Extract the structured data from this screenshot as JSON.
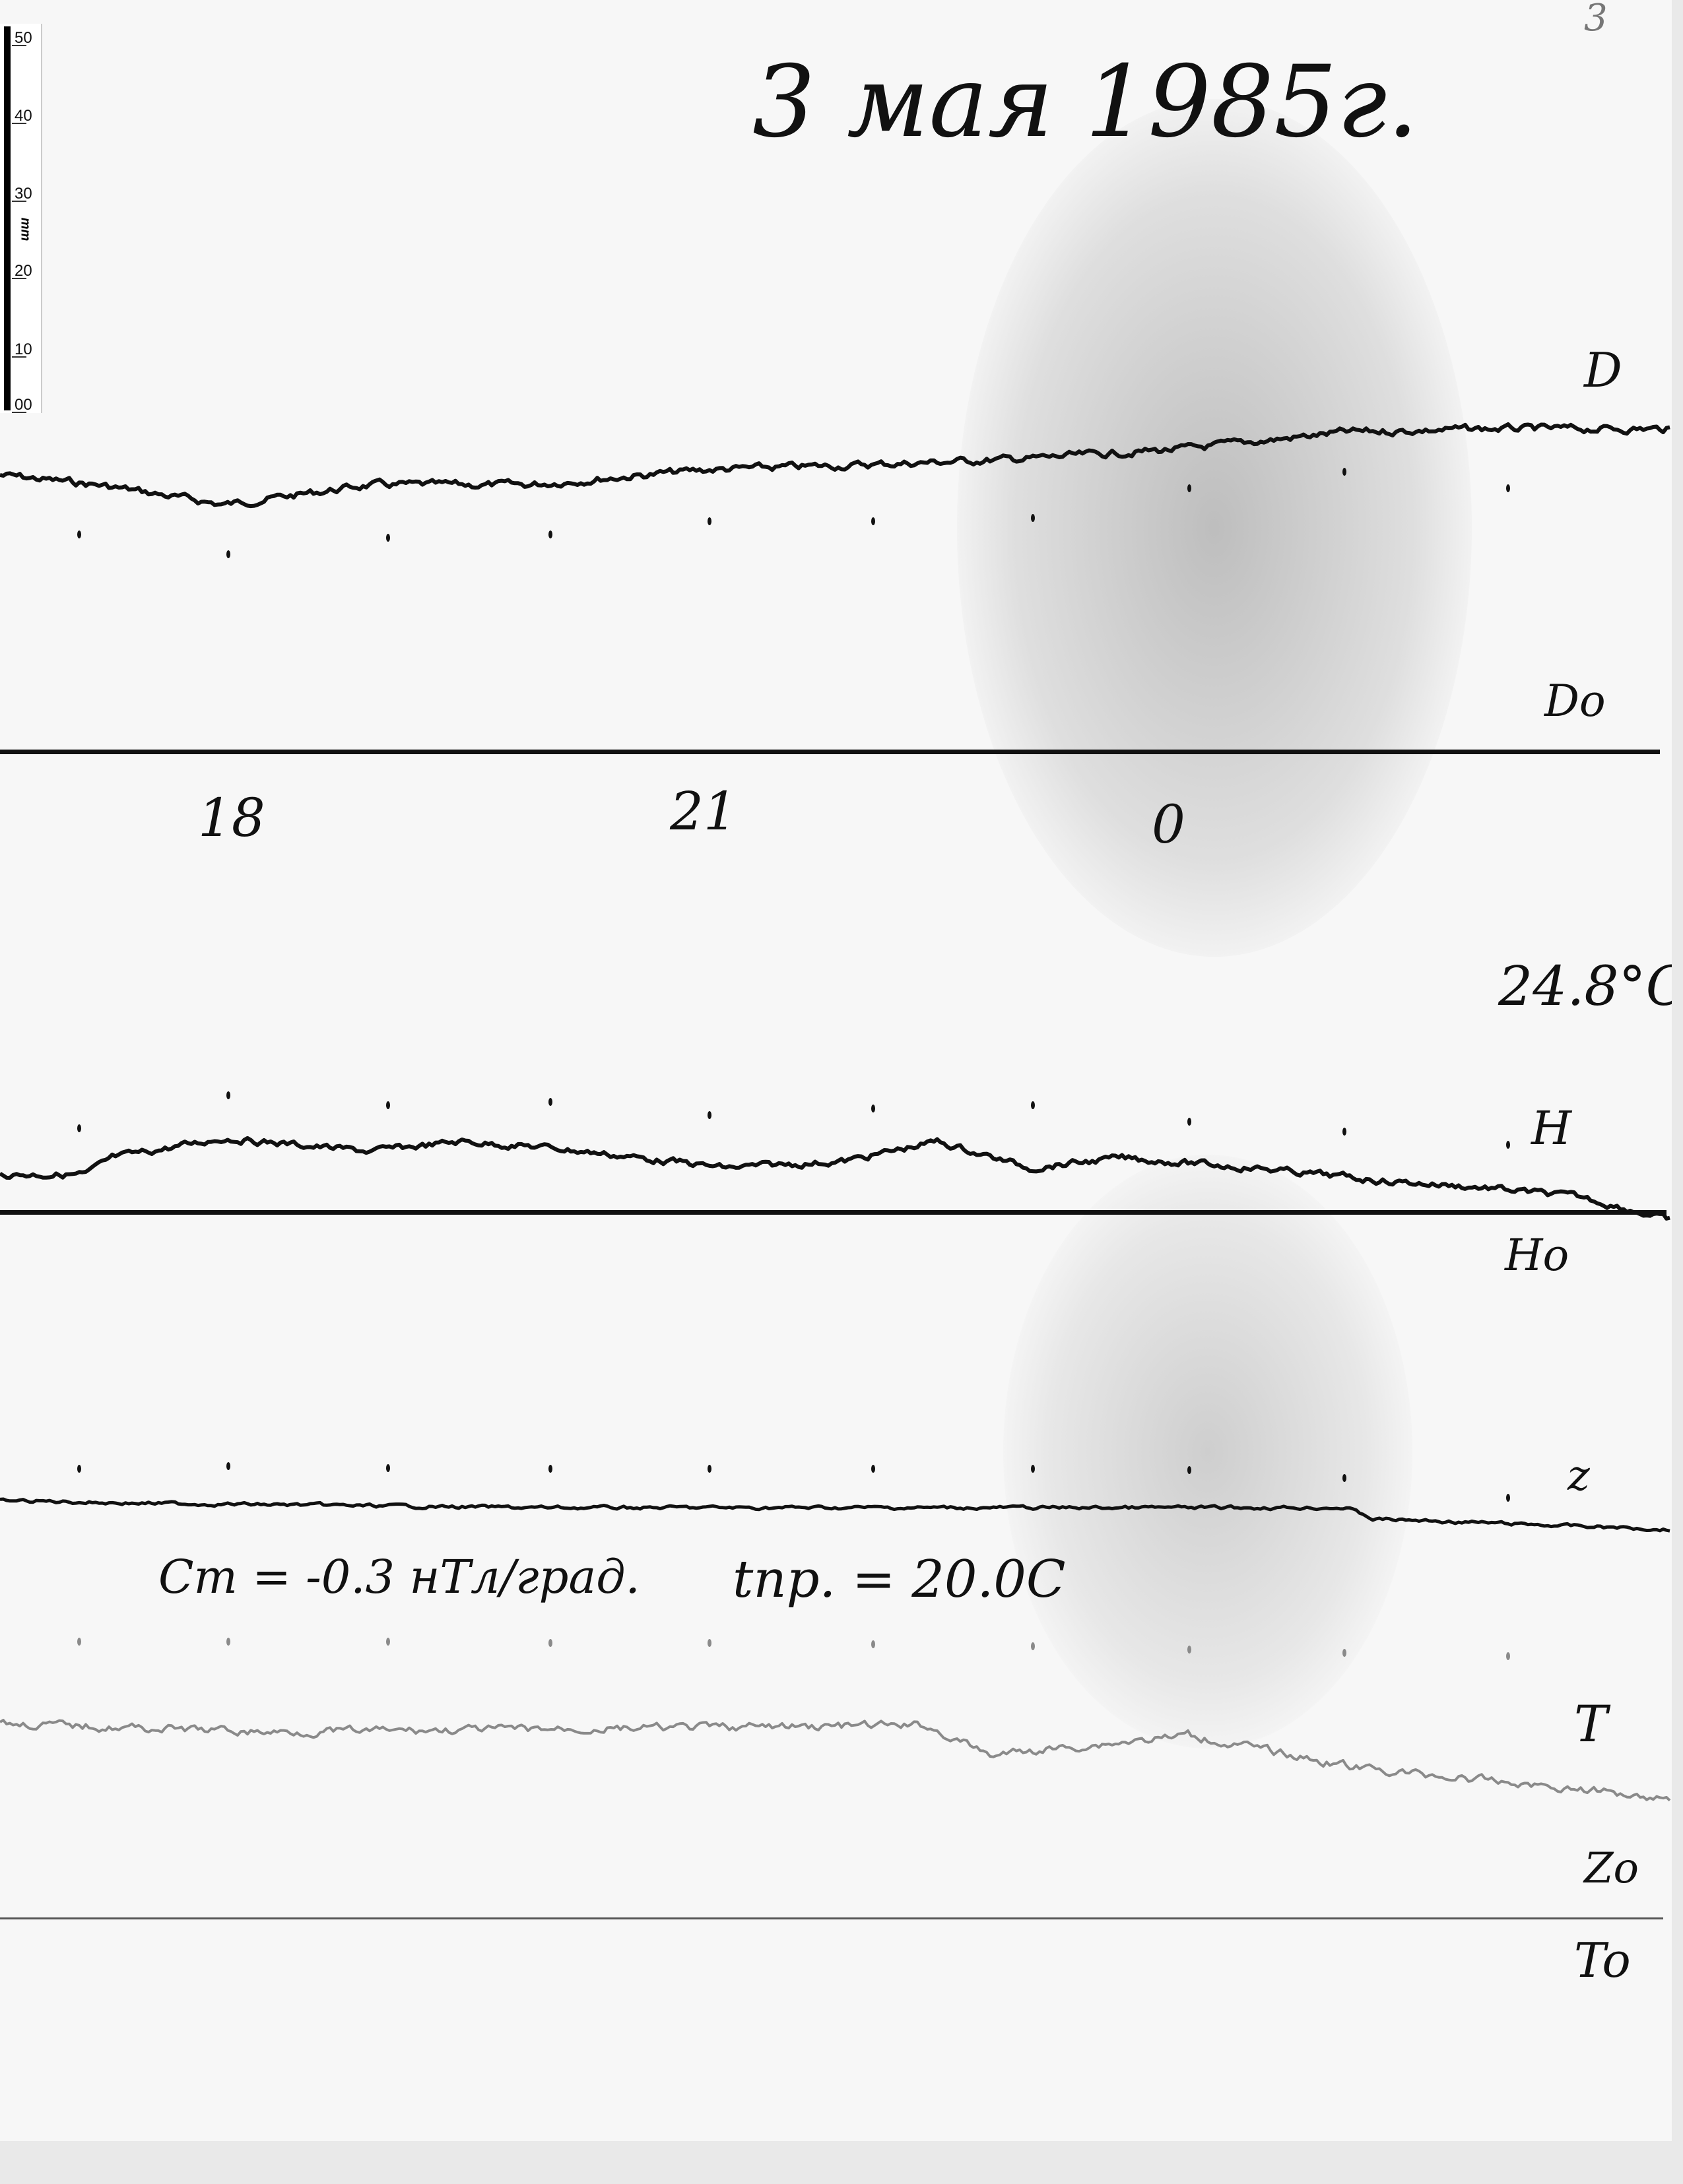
{
  "page_number": "3",
  "title": "3 мая 1985г.",
  "scale_ruler": {
    "unit": "mm",
    "ticks": [
      "50",
      "40",
      "30",
      "20",
      "10",
      "00"
    ]
  },
  "traces": {
    "D": {
      "label": "D",
      "baseline_label": "Do"
    },
    "H": {
      "label": "H",
      "baseline_label": "Ho"
    },
    "Z": {
      "label": "z",
      "baseline_label": "Zo"
    },
    "T": {
      "label": "T",
      "baseline_label": "To"
    }
  },
  "hour_marks": [
    "18",
    "21",
    "0"
  ],
  "temperature": "24.8°C",
  "annotations": {
    "ct": "Cт = -0.3 нТл/град.",
    "tpr": "tпр. = 20.0C"
  },
  "colors": {
    "paper": "#f7f7f7",
    "ink": "#111111",
    "trace_T": "#8a8a8a",
    "shadow": "#9a9a9a"
  }
}
